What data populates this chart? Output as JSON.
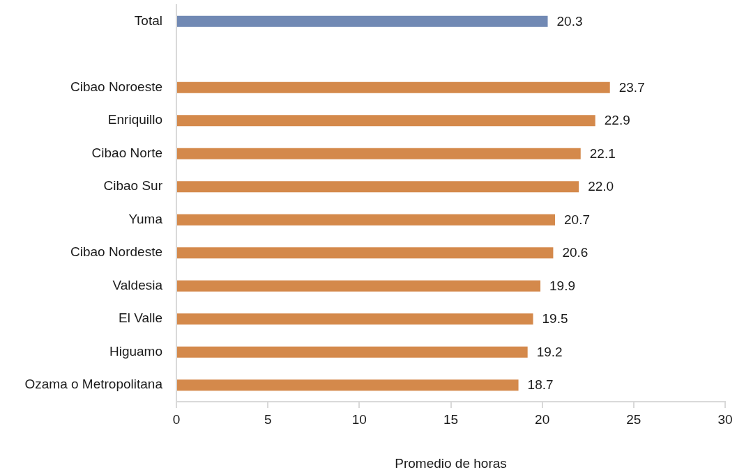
{
  "chart_data": {
    "type": "bar",
    "orientation": "horizontal",
    "xlabel": "Promedio de horas",
    "categories": [
      "Total",
      null,
      "Cibao Noroeste",
      "Enriquillo",
      "Cibao Norte",
      "Cibao Sur",
      "Yuma",
      "Cibao Nordeste",
      "Valdesia",
      "El Valle",
      "Higuamo",
      "Ozama o Metropolitana"
    ],
    "values": [
      20.3,
      null,
      23.7,
      22.9,
      22.1,
      22.0,
      20.7,
      20.6,
      19.9,
      19.5,
      19.2,
      18.7
    ],
    "value_labels": [
      "20.3",
      null,
      "23.7",
      "22.9",
      "22.1",
      "22.0",
      "20.7",
      "20.6",
      "19.9",
      "19.5",
      "19.2",
      "18.7"
    ],
    "colors": [
      "#7189b4",
      null,
      "#d4894b",
      "#d4894b",
      "#d4894b",
      "#d4894b",
      "#d4894b",
      "#d4894b",
      "#d4894b",
      "#d4894b",
      "#d4894b",
      "#d4894b"
    ],
    "xlim": [
      0,
      30
    ],
    "xticks": [
      0,
      5,
      10,
      15,
      20,
      25,
      30
    ]
  }
}
